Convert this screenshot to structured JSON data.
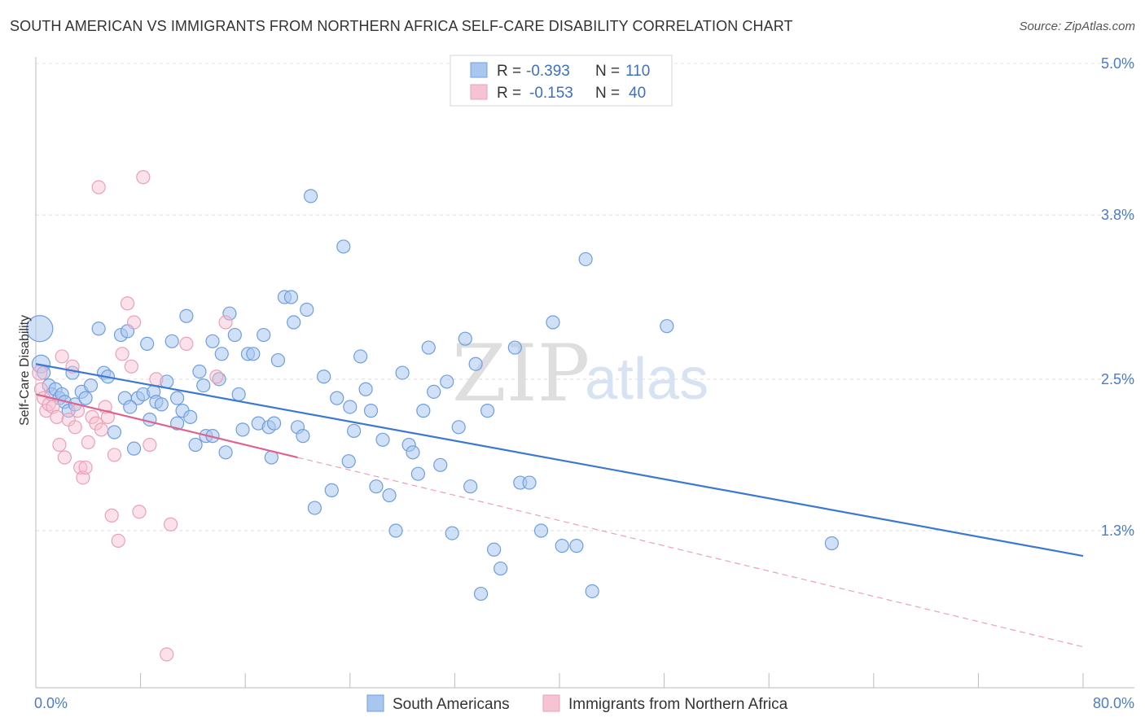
{
  "header": {
    "title": "SOUTH AMERICAN VS IMMIGRANTS FROM NORTHERN AFRICA SELF-CARE DISABILITY CORRELATION CHART",
    "source": "Source: ZipAtlas.com"
  },
  "watermark": {
    "zip": "ZIP",
    "atlas": "atlas"
  },
  "legend": {
    "rows": [
      {
        "r_label": "R =",
        "r_value": "-0.393",
        "n_label": "N =",
        "n_value": "110",
        "color": "#8db4e8"
      },
      {
        "r_label": "R =",
        "r_value": "-0.153",
        "n_label": "N =",
        "n_value": "40",
        "color": "#f4a9c0"
      }
    ]
  },
  "chart_data": {
    "type": "scatter",
    "ylabel": "Self-Care Disability",
    "xlim": [
      0,
      80
    ],
    "ylim": [
      0.0,
      5.3
    ],
    "x_tick_labels": [
      "0.0%",
      "80.0%"
    ],
    "y_ticks": [
      {
        "value": 1.3,
        "label": "1.3%"
      },
      {
        "value": 2.5,
        "label": "2.5%"
      },
      {
        "value": 3.8,
        "label": "3.8%"
      },
      {
        "value": 5.0,
        "label": "5.0%"
      }
    ],
    "grid": true,
    "colors": {
      "blue": "#3a78d4",
      "blue_fill": "#a9c6ee",
      "pink": "#e0628f",
      "pink_fill": "#f6bfd0"
    },
    "series": [
      {
        "name": "South Americans",
        "trend": {
          "x": [
            0,
            80
          ],
          "y": [
            2.62,
            1.1
          ]
        },
        "points": [
          [
            0.3,
            2.9,
            16
          ],
          [
            0.4,
            2.62,
            11
          ],
          [
            0.6,
            2.55,
            8
          ],
          [
            1.0,
            2.45,
            8
          ],
          [
            1.2,
            2.38,
            8
          ],
          [
            1.5,
            2.42,
            8
          ],
          [
            1.8,
            2.35,
            8
          ],
          [
            2.0,
            2.38,
            8
          ],
          [
            2.2,
            2.32,
            8
          ],
          [
            2.5,
            2.25,
            8
          ],
          [
            2.8,
            2.55,
            8
          ],
          [
            3.0,
            2.3,
            8
          ],
          [
            3.5,
            2.4,
            8
          ],
          [
            3.8,
            2.35,
            8
          ],
          [
            4.2,
            2.45,
            8
          ],
          [
            4.8,
            2.9,
            8
          ],
          [
            5.2,
            2.55,
            8
          ],
          [
            5.5,
            2.52,
            8
          ],
          [
            6.0,
            2.08,
            8
          ],
          [
            6.5,
            2.85,
            8
          ],
          [
            6.8,
            2.35,
            8
          ],
          [
            7.0,
            2.88,
            8
          ],
          [
            7.5,
            1.95,
            8
          ],
          [
            7.8,
            2.35,
            8
          ],
          [
            8.2,
            2.38,
            8
          ],
          [
            8.5,
            2.78,
            8
          ],
          [
            8.7,
            2.18,
            8
          ],
          [
            9.0,
            2.4,
            8
          ],
          [
            9.2,
            2.32,
            8
          ],
          [
            9.6,
            2.3,
            8
          ],
          [
            10.0,
            2.48,
            8
          ],
          [
            10.4,
            2.8,
            8
          ],
          [
            10.8,
            2.35,
            8
          ],
          [
            11.2,
            2.25,
            8
          ],
          [
            11.5,
            3.0,
            8
          ],
          [
            11.8,
            2.2,
            8
          ],
          [
            12.2,
            1.98,
            8
          ],
          [
            12.5,
            2.56,
            8
          ],
          [
            12.8,
            2.45,
            8
          ],
          [
            13.0,
            2.05,
            8
          ],
          [
            13.5,
            2.8,
            8
          ],
          [
            14.0,
            2.5,
            8
          ],
          [
            14.2,
            2.7,
            8
          ],
          [
            14.5,
            1.92,
            8
          ],
          [
            14.8,
            3.02,
            8
          ],
          [
            15.2,
            2.85,
            8
          ],
          [
            15.5,
            2.38,
            8
          ],
          [
            15.8,
            2.1,
            8
          ],
          [
            16.2,
            2.7,
            8
          ],
          [
            16.6,
            2.7,
            8
          ],
          [
            17.0,
            2.15,
            8
          ],
          [
            17.4,
            2.85,
            8
          ],
          [
            17.8,
            2.12,
            8
          ],
          [
            18.0,
            1.88,
            8
          ],
          [
            18.2,
            2.15,
            8
          ],
          [
            18.5,
            2.65,
            8
          ],
          [
            19.0,
            3.15,
            8
          ],
          [
            19.5,
            3.15,
            8
          ],
          [
            20.0,
            2.12,
            8
          ],
          [
            20.4,
            2.05,
            8
          ],
          [
            20.7,
            3.05,
            8
          ],
          [
            21.0,
            3.95,
            8
          ],
          [
            21.3,
            1.48,
            8
          ],
          [
            22.0,
            2.52,
            8
          ],
          [
            22.6,
            1.62,
            8
          ],
          [
            23.0,
            2.35,
            8
          ],
          [
            23.5,
            3.55,
            8
          ],
          [
            23.9,
            1.85,
            8
          ],
          [
            24.3,
            2.09,
            8
          ],
          [
            24.8,
            2.68,
            8
          ],
          [
            25.2,
            2.42,
            8
          ],
          [
            25.6,
            2.25,
            8
          ],
          [
            26.0,
            1.65,
            8
          ],
          [
            26.5,
            2.02,
            8
          ],
          [
            27.0,
            1.58,
            8
          ],
          [
            27.5,
            1.3,
            8
          ],
          [
            28.0,
            2.55,
            8
          ],
          [
            28.5,
            1.98,
            8
          ],
          [
            28.8,
            1.92,
            8
          ],
          [
            29.2,
            1.75,
            8
          ],
          [
            29.6,
            2.25,
            8
          ],
          [
            30.0,
            2.75,
            8
          ],
          [
            30.4,
            2.4,
            8
          ],
          [
            30.9,
            1.82,
            8
          ],
          [
            31.4,
            2.48,
            8
          ],
          [
            31.8,
            1.28,
            8
          ],
          [
            32.3,
            2.12,
            8
          ],
          [
            32.8,
            2.82,
            8
          ],
          [
            33.2,
            1.65,
            8
          ],
          [
            33.6,
            2.62,
            8
          ],
          [
            34.0,
            0.8,
            8
          ],
          [
            34.5,
            2.25,
            8
          ],
          [
            35.0,
            1.15,
            8
          ],
          [
            35.5,
            1.0,
            8
          ],
          [
            36.6,
            2.75,
            8
          ],
          [
            37.0,
            1.68,
            8
          ],
          [
            37.7,
            1.68,
            8
          ],
          [
            38.6,
            1.3,
            8
          ],
          [
            39.5,
            2.95,
            8
          ],
          [
            40.2,
            1.18,
            8
          ],
          [
            41.3,
            1.18,
            8
          ],
          [
            42.0,
            3.45,
            8
          ],
          [
            42.5,
            0.82,
            8
          ],
          [
            48.2,
            2.92,
            8
          ],
          [
            60.8,
            1.2,
            8
          ],
          [
            19.7,
            2.95,
            8
          ],
          [
            13.5,
            2.05,
            8
          ],
          [
            7.2,
            2.28,
            8
          ],
          [
            10.8,
            2.15,
            8
          ],
          [
            24.0,
            2.28,
            8
          ]
        ]
      },
      {
        "name": "Immigrants from Northern Africa",
        "trend": {
          "x": [
            0,
            20
          ],
          "y": [
            2.38,
            1.88
          ]
        },
        "trend_ext": {
          "x": [
            20,
            80
          ],
          "y": [
            1.88,
            0.38
          ]
        },
        "points": [
          [
            0.3,
            2.55,
            9
          ],
          [
            0.4,
            2.42,
            8
          ],
          [
            0.6,
            2.35,
            8
          ],
          [
            0.8,
            2.25,
            8
          ],
          [
            1.0,
            2.3,
            8
          ],
          [
            1.3,
            2.28,
            8
          ],
          [
            1.6,
            2.2,
            8
          ],
          [
            1.8,
            1.98,
            8
          ],
          [
            2.0,
            2.68,
            8
          ],
          [
            2.2,
            1.88,
            8
          ],
          [
            2.5,
            2.18,
            8
          ],
          [
            2.8,
            2.6,
            8
          ],
          [
            3.0,
            2.12,
            8
          ],
          [
            3.2,
            2.25,
            8
          ],
          [
            3.4,
            1.8,
            8
          ],
          [
            3.6,
            1.72,
            8
          ],
          [
            3.8,
            1.8,
            8
          ],
          [
            4.0,
            2.0,
            8
          ],
          [
            4.3,
            2.2,
            8
          ],
          [
            4.8,
            4.02,
            8
          ],
          [
            4.6,
            2.15,
            8
          ],
          [
            5.0,
            2.1,
            8
          ],
          [
            5.3,
            2.28,
            8
          ],
          [
            5.5,
            2.2,
            8
          ],
          [
            5.8,
            1.42,
            8
          ],
          [
            6.0,
            1.9,
            8
          ],
          [
            6.3,
            1.22,
            8
          ],
          [
            6.6,
            2.7,
            8
          ],
          [
            7.0,
            3.1,
            8
          ],
          [
            7.3,
            2.6,
            8
          ],
          [
            7.5,
            2.95,
            8
          ],
          [
            7.9,
            1.45,
            8
          ],
          [
            8.2,
            4.1,
            8
          ],
          [
            8.7,
            1.98,
            8
          ],
          [
            9.2,
            2.5,
            8
          ],
          [
            10.0,
            0.32,
            8
          ],
          [
            10.3,
            1.35,
            8
          ],
          [
            11.5,
            2.78,
            8
          ],
          [
            13.8,
            2.52,
            8
          ],
          [
            14.5,
            2.95,
            8
          ]
        ]
      }
    ]
  },
  "bottom_legend": {
    "items": [
      {
        "label": "South Americans",
        "color": "#a9c6ee",
        "stroke": "#6f9ee0"
      },
      {
        "label": "Immigrants from Northern Africa",
        "color": "#f6c3d3",
        "stroke": "#eba0b8"
      }
    ]
  }
}
